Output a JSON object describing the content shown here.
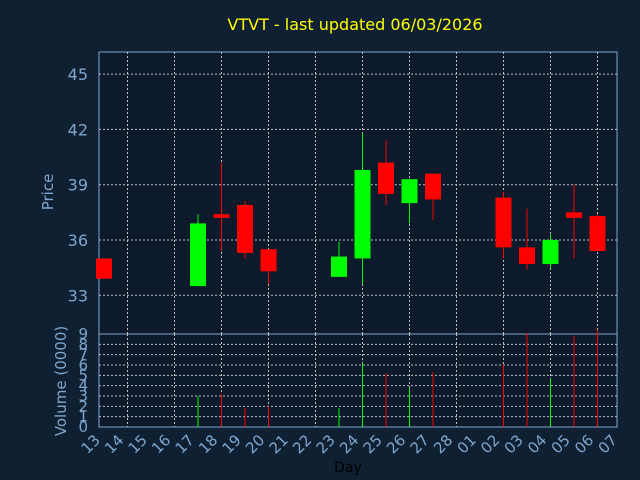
{
  "chart_data": {
    "type": "candlestick",
    "title": "VTVT - last updated 06/03/2026",
    "price_axis": {
      "label": "Price",
      "ticks": [
        33,
        36,
        39,
        42,
        45
      ],
      "range": [
        30.9,
        46.2
      ]
    },
    "volume_axis": {
      "label": "Volume (0000)",
      "ticks": [
        0,
        1,
        2,
        3,
        4,
        5,
        6,
        7,
        8,
        9
      ],
      "range": [
        0,
        9
      ]
    },
    "xlabel": "Day",
    "day_labels": [
      "13",
      "14",
      "15",
      "16",
      "17",
      "18",
      "19",
      "20",
      "21",
      "22",
      "23",
      "24",
      "25",
      "26",
      "27",
      "28",
      "01",
      "02",
      "03",
      "04",
      "05",
      "06",
      "07"
    ],
    "grid": true,
    "colors": {
      "background": "#102033",
      "plot": "#0d1a2b",
      "up": "#00ff00",
      "down": "#ff0000",
      "axis_text": "#7ea6cc",
      "title": "#ffff00",
      "grid": "#bfbfbf"
    },
    "candles": [
      {
        "day": "13",
        "open": 35.0,
        "close": 33.9,
        "high": 35.0,
        "low": 33.9,
        "volume": 0.0
      },
      {
        "day": "17",
        "open": 33.5,
        "close": 36.9,
        "high": 37.4,
        "low": 33.5,
        "volume": 3.0
      },
      {
        "day": "18",
        "open": 37.4,
        "close": 37.2,
        "high": 40.2,
        "low": 35.4,
        "volume": 3.2
      },
      {
        "day": "19",
        "open": 37.9,
        "close": 35.3,
        "high": 38.1,
        "low": 35.0,
        "volume": 1.8
      },
      {
        "day": "20",
        "open": 35.5,
        "close": 34.3,
        "high": 35.5,
        "low": 33.6,
        "volume": 2.0
      },
      {
        "day": "23",
        "open": 34.0,
        "close": 35.1,
        "high": 35.9,
        "low": 34.0,
        "volume": 1.8
      },
      {
        "day": "24",
        "open": 35.0,
        "close": 39.8,
        "high": 41.8,
        "low": 33.6,
        "volume": 6.2
      },
      {
        "day": "25",
        "open": 40.2,
        "close": 38.5,
        "high": 41.4,
        "low": 37.9,
        "volume": 5.2
      },
      {
        "day": "26",
        "open": 38.0,
        "close": 39.3,
        "high": 39.3,
        "low": 36.9,
        "volume": 3.8
      },
      {
        "day": "27",
        "open": 39.6,
        "close": 38.2,
        "high": 39.6,
        "low": 37.1,
        "volume": 5.3
      },
      {
        "day": "02",
        "open": 38.3,
        "close": 35.6,
        "high": 38.6,
        "low": 35.0,
        "volume": 6.0
      },
      {
        "day": "03",
        "open": 35.6,
        "close": 34.7,
        "high": 37.7,
        "low": 34.4,
        "volume": 9.1
      },
      {
        "day": "04",
        "open": 34.7,
        "close": 36.0,
        "high": 36.3,
        "low": 34.5,
        "volume": 4.7
      },
      {
        "day": "05",
        "open": 37.5,
        "close": 37.2,
        "high": 39.0,
        "low": 35.0,
        "volume": 8.8
      },
      {
        "day": "06",
        "open": 37.3,
        "close": 35.4,
        "high": 37.4,
        "low": 35.4,
        "volume": 9.4
      }
    ]
  }
}
